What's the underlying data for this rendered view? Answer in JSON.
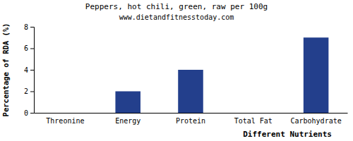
{
  "chart_data": {
    "type": "bar",
    "title": "Peppers, hot chili, green, raw per 100g",
    "subtitle": "www.dietandfitnesstoday.com",
    "x_label": "Different Nutrients",
    "y_label": "Percentage of RDA (%)",
    "categories": [
      "Threonine",
      "Energy",
      "Protein",
      "Total Fat",
      "Carbohydrate"
    ],
    "values": [
      0,
      2,
      4,
      0,
      7
    ],
    "color": "#233f8c",
    "ylim": [
      0,
      8
    ],
    "yticks": [
      0,
      2,
      4,
      6,
      8
    ],
    "grid": false
  }
}
